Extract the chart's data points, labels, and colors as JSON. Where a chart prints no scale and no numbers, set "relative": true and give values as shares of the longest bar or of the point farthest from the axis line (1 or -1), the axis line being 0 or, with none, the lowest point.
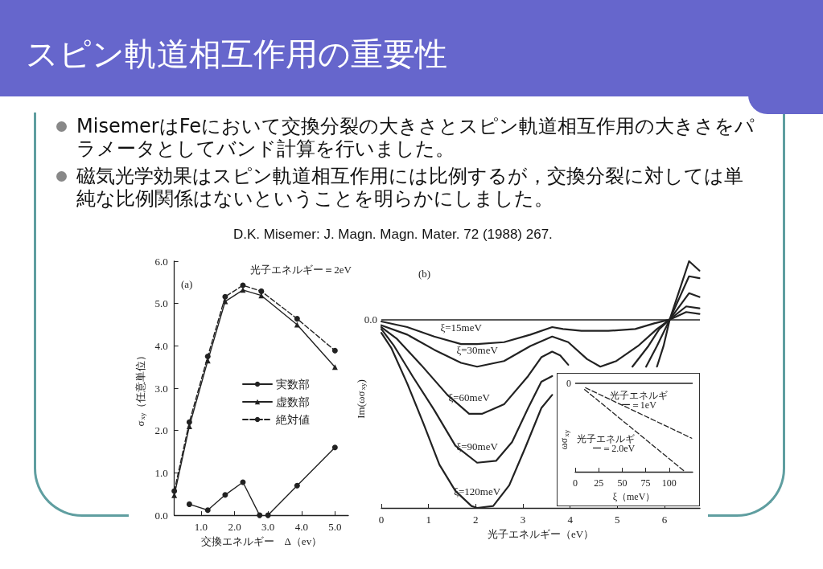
{
  "chart_data": [
    {
      "type": "other",
      "title": "スピン軌道相互作用の重要性",
      "annotations": [
        "MisemerはFeにおいて交換分裂の大きさとスピン軌道相互作用の大きさをパラメータとしてバンド計算を行いました。",
        "磁気光学効果はスピン軌道相互作用には比例するが，交換分裂に対しては単純な比例関係はないということを明らかにしました。",
        "D.K. Misemer: J. Magn. Magn. Mater. 72 (1988) 267."
      ]
    },
    {
      "type": "line",
      "xlabel": "交換エネルギー　Δ（ev）",
      "ylabel": "σ$_{xy}$（任意単位）",
      "annotations": [
        "(a)",
        "光子エネルギー＝2eV"
      ],
      "legend": "right",
      "xlim": [
        0.2,
        5.4
      ],
      "xticks": [
        {
          "value": 1,
          "label": "1.0"
        },
        {
          "value": 2,
          "label": "2.0"
        },
        {
          "value": 3,
          "label": "3.0"
        },
        {
          "value": 4,
          "label": "4.0"
        },
        {
          "value": 5,
          "label": "5.0"
        }
      ],
      "ylim": [
        0,
        6
      ],
      "yticks": [
        {
          "value": 0,
          "label": "0.0"
        },
        {
          "value": 1,
          "label": "1.0"
        },
        {
          "value": 2,
          "label": "2.0"
        },
        {
          "value": 3,
          "label": "3.0"
        },
        {
          "value": 4,
          "label": "4.0"
        },
        {
          "value": 5,
          "label": "5.0"
        },
        {
          "value": 6,
          "label": "6.0"
        }
      ],
      "series": [
        {
          "name": "実数部",
          "color": "#222222",
          "marker": "circle",
          "x": [
            0.65,
            1.2,
            1.72,
            2.25,
            2.75,
            2.88,
            3.0,
            3.87,
            5.0
          ],
          "values": [
            0.26,
            0.12,
            0.48,
            0.78,
            0,
            null,
            0,
            0.7,
            1.6
          ]
        },
        {
          "name": "虚数部",
          "color": "#222222",
          "marker": "triangle",
          "x": [
            0.2,
            0.65,
            1.2,
            1.72,
            2.25,
            2.8,
            3.87,
            5.0
          ],
          "values": [
            0.47,
            2.1,
            3.65,
            5.05,
            5.32,
            5.19,
            4.5,
            3.5
          ]
        },
        {
          "name": "絶対値",
          "color": "#222222",
          "marker": "circle",
          "line_style": "dashed",
          "x": [
            0.2,
            0.65,
            1.2,
            1.72,
            2.25,
            2.8,
            3.87,
            5.0
          ],
          "values": [
            0.57,
            2.2,
            3.75,
            5.16,
            5.43,
            5.29,
            4.64,
            3.89
          ]
        }
      ]
    },
    {
      "type": "line",
      "relative": true,
      "xlabel": "光子エネルギー（eV）",
      "ylabel": "Im(ωσ$_{xy}$)",
      "annotations": [
        "(b)"
      ],
      "xlim": [
        0,
        6.75
      ],
      "xticks": [
        0,
        1,
        2,
        3,
        4,
        5,
        6
      ],
      "ref_lines": [
        {
          "axis": "y",
          "value": 0,
          "label": "0.0"
        }
      ],
      "series": [
        {
          "name": "ξ=15meV",
          "color": "#222222",
          "x": [
            0,
            0.55,
            1.12,
            1.69,
            2.03,
            2.6,
            3.16,
            3.62,
            3.85,
            4.24,
            4.81,
            5.38,
            5.78,
            6.11,
            6.46,
            6.74
          ],
          "values": [
            -0.01,
            -0.04,
            -0.09,
            -0.13,
            -0.13,
            -0.12,
            -0.08,
            -0.04,
            -0.05,
            -0.06,
            -0.06,
            -0.05,
            -0.02,
            0,
            0.04,
            0.03
          ]
        },
        {
          "name": "ξ=30meV",
          "color": "#222222",
          "x": [
            0,
            0.55,
            1.12,
            1.69,
            2.03,
            2.6,
            3.16,
            3.62,
            3.96,
            4.36,
            4.64,
            4.98,
            5.44,
            5.84,
            6.11,
            6.46,
            6.74
          ],
          "values": [
            -0.03,
            -0.08,
            -0.16,
            -0.23,
            -0.25,
            -0.22,
            -0.14,
            -0.09,
            -0.12,
            -0.21,
            -0.25,
            -0.22,
            -0.14,
            -0.05,
            0,
            0.07,
            0.06
          ]
        },
        {
          "name": "ξ=60meV",
          "color": "#222222",
          "x": [
            0,
            0.32,
            0.84,
            1.4,
            1.86,
            2.14,
            2.6,
            3.11,
            3.39,
            3.62,
            3.79,
            3.96,
            4.53,
            5.32,
            5.66,
            5.89,
            6.11,
            6.52,
            6.74
          ],
          "values": [
            -0.04,
            -0.1,
            -0.24,
            -0.4,
            -0.5,
            -0.5,
            -0.45,
            -0.3,
            -0.2,
            -0.17,
            -0.19,
            -0.24,
            null,
            -0.25,
            -0.14,
            -0.05,
            0,
            0.14,
            0.12
          ]
        },
        {
          "name": "ξ=90meV",
          "color": "#222222",
          "x": [
            0,
            0.27,
            0.66,
            1.12,
            1.57,
            2.03,
            2.43,
            2.77,
            3.11,
            3.39,
            3.62,
            4.53,
            5.61,
            5.84,
            6.11,
            6.52,
            6.74
          ],
          "values": [
            -0.05,
            -0.14,
            -0.3,
            -0.48,
            -0.67,
            -0.76,
            -0.75,
            -0.65,
            -0.47,
            -0.33,
            -0.3,
            null,
            -0.25,
            -0.14,
            0,
            0.23,
            0.22
          ]
        },
        {
          "name": "ξ=120meV",
          "color": "#222222",
          "x": [
            0,
            0.21,
            0.55,
            0.89,
            1.23,
            1.57,
            1.91,
            2.03,
            2.37,
            2.71,
            3.05,
            3.39,
            3.62,
            4.53,
            5.84,
            5.98,
            6.11,
            6.52,
            6.74
          ],
          "values": [
            -0.07,
            -0.15,
            -0.34,
            -0.55,
            -0.77,
            -0.91,
            -0.99,
            -1,
            -0.99,
            -0.88,
            -0.68,
            -0.47,
            -0.4,
            null,
            -0.25,
            -0.14,
            0,
            0.31,
            0.26
          ]
        }
      ]
    },
    {
      "type": "line",
      "relative": true,
      "xlabel": "ξ（meV）",
      "ylabel": "ωσ$_{xy}$",
      "xlim": [
        0,
        125
      ],
      "xticks": [
        0,
        25,
        50,
        75,
        100
      ],
      "line_style": "dashed",
      "ref_lines": [
        {
          "axis": "y",
          "value": 0,
          "label": "0"
        }
      ],
      "series": [
        {
          "name": "光子エネルギー＝1eV",
          "color": "#222222",
          "x": [
            11,
            124
          ],
          "values": [
            -0.05,
            -0.62
          ]
        },
        {
          "name": "光子エネルギー＝2.0eV",
          "color": "#222222",
          "x": [
            10,
            117
          ],
          "values": [
            -0.07,
            -1
          ]
        }
      ]
    }
  ]
}
